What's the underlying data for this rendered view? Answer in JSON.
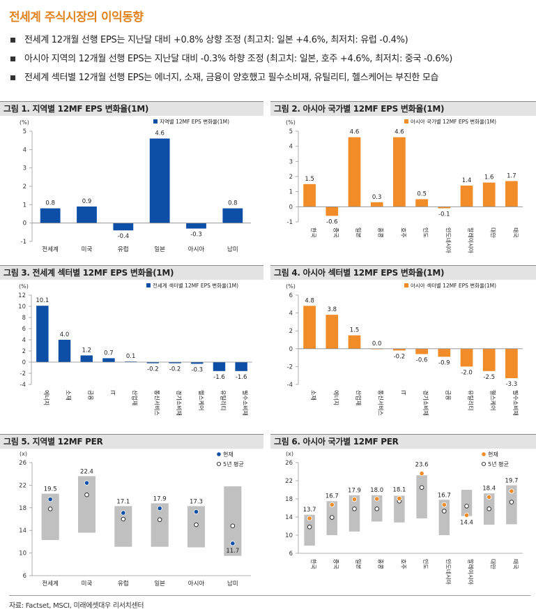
{
  "page": {
    "title": "전세계 주식시장의 이익동향",
    "bullets": [
      "전세계 12개월 선행 EPS는 지난달 대비 +0.8% 상향 조정 (최고치: 일본 +4.6%, 최저치: 유럽 -0.4%)",
      "아시아 지역의 12개월 선행 EPS는 지난달 대비 -0.3% 하향 조정 (최고치: 일본, 호주 +4.6%, 최저치: 중국 -0.6%)",
      "전세계 섹터별 12개월 선행 EPS는 에너지, 소재, 금융이 양호했고 필수소비재, 유틸리티, 헬스케어는 부진한 모습"
    ],
    "source": "자료: Factset, MSCI, 미래에셋대우 리서치센터"
  },
  "colors": {
    "blue": "#0d4ea6",
    "orange": "#f28c28",
    "gray_band": "#c0c0c0",
    "title_orange": "#e0821e",
    "header_bg": "#e3e3e3"
  },
  "chart_data": [
    {
      "header": "그림 1. 지역별 12MF EPS 변화율(1M)",
      "type": "bar",
      "unit": "(%)",
      "color": "#0d4ea6",
      "categories": [
        "전세계",
        "미국",
        "유럽",
        "일본",
        "아시아",
        "남미"
      ],
      "series": [
        {
          "name": "지역별 12MF EPS 변화율(1M)",
          "values": [
            0.8,
            0.9,
            -0.4,
            4.6,
            -0.3,
            0.8
          ]
        }
      ],
      "value_labels": [
        "0.8",
        "0.9",
        "-0.4",
        "4.6",
        "-0.3",
        "0.8"
      ],
      "ylim": [
        -1,
        5
      ],
      "yticks": [
        "-1",
        "0",
        "1",
        "2",
        "3",
        "4",
        "5"
      ],
      "legend": "top-right"
    },
    {
      "header": "그림 2. 아시아 국가별 12MF EPS 변화율(1M)",
      "type": "bar",
      "unit": "(%)",
      "color": "#f28c28",
      "categories": [
        "한국",
        "중국",
        "일본",
        "홍콩",
        "호주",
        "인도",
        "인도네시아",
        "말레이시아",
        "대만",
        "태국"
      ],
      "series": [
        {
          "name": "아시아 국가별 12MF EPS 변화율(1M)",
          "values": [
            1.5,
            -0.6,
            4.6,
            0.3,
            4.6,
            0.5,
            -0.1,
            1.4,
            1.6,
            1.7
          ]
        }
      ],
      "value_labels": [
        "1.5",
        "-0.6",
        "4.6",
        "0.3",
        "4.6",
        "0.5",
        "-0.1",
        "1.4",
        "1.6",
        "1.7"
      ],
      "ylim": [
        -1,
        5
      ],
      "yticks": [
        "-1",
        "0",
        "1",
        "2",
        "3",
        "4",
        "5"
      ],
      "legend": "top-right"
    },
    {
      "header": "그림 3. 전세계 섹터별 12MF EPS 변화율(1M)",
      "type": "bar",
      "unit": "(%)",
      "color": "#0d4ea6",
      "categories": [
        "에너지",
        "소재",
        "금융",
        "IT",
        "산업재",
        "통신서비스",
        "경기소비재",
        "헬스케어",
        "유틸리티",
        "필수소비재"
      ],
      "series": [
        {
          "name": "전세계 섹터별 12MF EPS 변화율(1M)",
          "values": [
            10.1,
            4.0,
            1.2,
            0.7,
            0.1,
            -0.2,
            -0.2,
            -0.3,
            -1.6,
            -1.6
          ]
        }
      ],
      "value_labels": [
        "10.1",
        "4.0",
        "1.2",
        "0.7",
        "0.1",
        "-0.2",
        "-0.2",
        "-0.3",
        "-1.6",
        "-1.6"
      ],
      "ylim": [
        -4,
        12
      ],
      "yticks": [
        "-4",
        "-2",
        "0",
        "2",
        "4",
        "6",
        "8",
        "10",
        "12"
      ],
      "legend": "top-right"
    },
    {
      "header": "그림 4. 아시아 섹터별 12MF EPS 변화율(1M)",
      "type": "bar",
      "unit": "(%)",
      "color": "#f28c28",
      "categories": [
        "소재",
        "에너지",
        "산업재",
        "통신서비스",
        "IT",
        "경기소비재",
        "금융",
        "유틸리티",
        "헬스케어",
        "필수소비재"
      ],
      "series": [
        {
          "name": "아시아 섹터별 12MF EPS 변화율(1M)",
          "values": [
            4.8,
            3.8,
            1.5,
            0.0,
            -0.2,
            -0.6,
            -0.9,
            -2.0,
            -2.5,
            -3.3
          ]
        }
      ],
      "value_labels": [
        "4.8",
        "3.8",
        "1.5",
        "0.0",
        "-0.2",
        "-0.6",
        "-0.9",
        "-2.0",
        "-2.5",
        "-3.3"
      ],
      "ylim": [
        -4,
        6
      ],
      "yticks": [
        "-4",
        "-2",
        "0",
        "2",
        "4",
        "6"
      ],
      "legend": "top-right"
    },
    {
      "header": "그림 5. 지역별 12MF PER",
      "type": "range",
      "unit": "(x)",
      "color": "#0d4ea6",
      "categories": [
        "전세계",
        "미국",
        "유럽",
        "일본",
        "아시아",
        "남미"
      ],
      "ranges": [
        [
          12.3,
          20.5
        ],
        [
          13.6,
          23.6
        ],
        [
          11.1,
          18.3
        ],
        [
          11.1,
          18.8
        ],
        [
          11.0,
          18.3
        ],
        [
          9.5,
          21.8
        ]
      ],
      "current": [
        19.5,
        22.4,
        17.1,
        17.9,
        17.3,
        11.7
      ],
      "avg5y": [
        17.8,
        20.3,
        16.0,
        15.9,
        15.0,
        14.8
      ],
      "value_labels": [
        "19.5",
        "22.4",
        "17.1",
        "17.9",
        "17.3",
        "11.7"
      ],
      "legend_current": "현재",
      "legend_avg": "5년 평균",
      "ylim": [
        6,
        26
      ],
      "yticks": [
        "6",
        "10",
        "14",
        "18",
        "22",
        "26"
      ],
      "legend": "top-right"
    },
    {
      "header": "그림 6. 아시아 국가별 12MF PER",
      "type": "range",
      "unit": "(x)",
      "color": "#f28c28",
      "categories": [
        "한국",
        "중국",
        "일본",
        "홍콩",
        "호주",
        "인도",
        "인도네시아",
        "말레이시아",
        "대만",
        "태국"
      ],
      "ranges": [
        [
          7.7,
          14.5
        ],
        [
          10.0,
          17.5
        ],
        [
          10.8,
          18.8
        ],
        [
          13.0,
          18.8
        ],
        [
          12.8,
          18.7
        ],
        [
          13.7,
          23.2
        ],
        [
          10.0,
          17.8
        ],
        [
          14.2,
          20.0
        ],
        [
          12.3,
          19.2
        ],
        [
          12.4,
          21.0
        ]
      ],
      "current": [
        13.7,
        16.7,
        17.9,
        18.0,
        18.1,
        23.6,
        16.7,
        14.4,
        18.4,
        19.7
      ],
      "avg5y": [
        11.8,
        13.9,
        15.8,
        15.8,
        17.5,
        20.5,
        15.3,
        16.4,
        15.8,
        17.3
      ],
      "value_labels": [
        "13.7",
        "16.7",
        "17.9",
        "18.0",
        "18.1",
        "23.6",
        "16.7",
        "14.4",
        "18.4",
        "19.7"
      ],
      "legend_current": "현재",
      "legend_avg": "5년 평균",
      "ylim": [
        6,
        26
      ],
      "yticks": [
        "6",
        "10",
        "14",
        "18",
        "22",
        "26"
      ],
      "legend": "top-right"
    }
  ]
}
